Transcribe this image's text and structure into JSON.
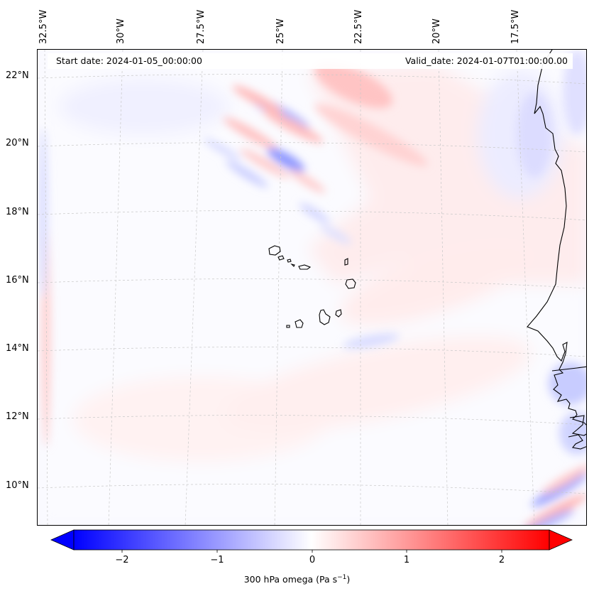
{
  "header": {
    "start_date": "Start date: 2024-01-05_00:00:00",
    "valid_date": "Valid_date: 2024-01-07T01:00:00.00"
  },
  "longitude_labels": [
    "32.5°W",
    "30°W",
    "27.5°W",
    "25°W",
    "22.5°W",
    "20°W",
    "17.5°W"
  ],
  "latitude_labels": [
    "22°N",
    "20°N",
    "18°N",
    "16°N",
    "14°N",
    "12°N",
    "10°N"
  ],
  "colorbar": {
    "label_text": "300 hPa omega (Pa s",
    "label_exponent": "−1",
    "label_close": ")",
    "ticks": [
      "−2",
      "−1",
      "0",
      "1",
      "2"
    ],
    "range": [
      -2.5,
      2.5
    ],
    "colors": {
      "negative": "#0000ff",
      "zero": "#ffffff",
      "positive": "#ff0000"
    }
  },
  "map": {
    "region": "Cape Verde / West African coast",
    "extent": {
      "lon_min": -33,
      "lon_max": -15.5,
      "lat_min": 9,
      "lat_max": 22.6
    },
    "variable": "300 hPa omega"
  }
}
